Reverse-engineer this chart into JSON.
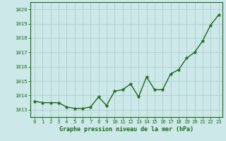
{
  "x": [
    0,
    1,
    2,
    3,
    4,
    5,
    6,
    7,
    8,
    9,
    10,
    11,
    12,
    13,
    14,
    15,
    16,
    17,
    18,
    19,
    20,
    21,
    22,
    23
  ],
  "y": [
    1013.6,
    1013.5,
    1013.5,
    1013.5,
    1013.2,
    1013.1,
    1013.1,
    1013.2,
    1013.9,
    1013.3,
    1014.3,
    1014.4,
    1014.8,
    1013.9,
    1015.3,
    1014.4,
    1014.4,
    1015.5,
    1015.8,
    1016.6,
    1017.0,
    1017.8,
    1018.9,
    1019.6
  ],
  "ylim": [
    1012.5,
    1020.5
  ],
  "yticks": [
    1013,
    1014,
    1015,
    1016,
    1017,
    1018,
    1019,
    1020
  ],
  "xticks": [
    0,
    1,
    2,
    3,
    4,
    5,
    6,
    7,
    8,
    9,
    10,
    11,
    12,
    13,
    14,
    15,
    16,
    17,
    18,
    19,
    20,
    21,
    22,
    23
  ],
  "line_color": "#1a6b1a",
  "marker": "*",
  "bg_color": "#cce8e8",
  "grid_color": "#aacece",
  "xlabel": "Graphe pression niveau de la mer (hPa)",
  "xlabel_color": "#1a6b1a",
  "tick_color": "#1a6b1a",
  "spine_color": "#1a6b1a",
  "line_width": 1.0,
  "marker_size": 3.5,
  "tick_fontsize": 5.2,
  "xlabel_fontsize": 6.0
}
